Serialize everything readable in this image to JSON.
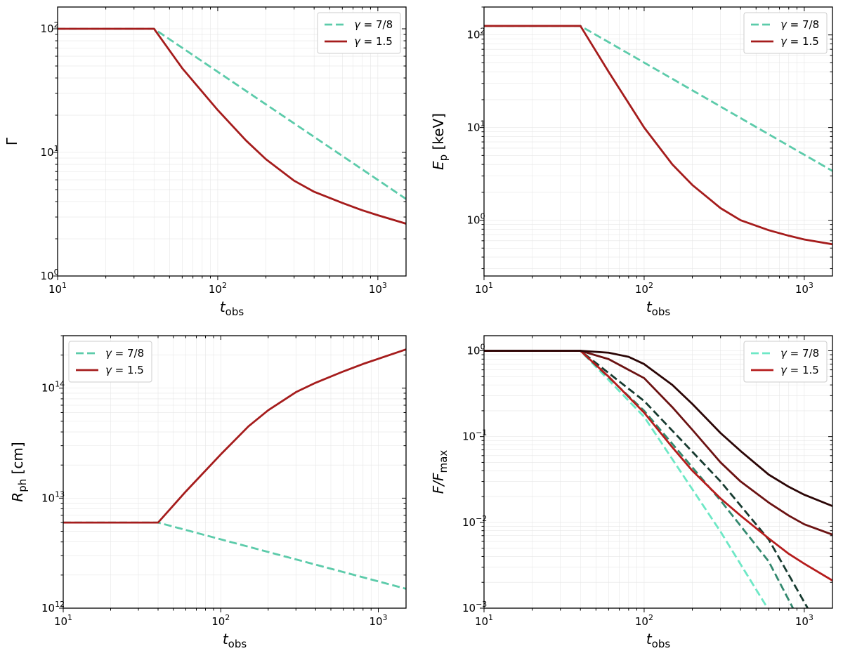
{
  "chart_data": [
    {
      "type": "line",
      "panel": "top-left",
      "xscale": "log",
      "yscale": "log",
      "xlim": [
        10,
        1500
      ],
      "ylim": [
        1,
        150
      ],
      "xlabel": "t",
      "xlabel_sub": "obs",
      "ylabel": "Γ",
      "ylabel_sub": "",
      "legend_position": "top-right",
      "xticks": [
        {
          "value": 10,
          "base": "10",
          "exp": "1"
        },
        {
          "value": 100,
          "base": "10",
          "exp": "2"
        },
        {
          "value": 1000,
          "base": "10",
          "exp": "3"
        }
      ],
      "yticks": [
        {
          "value": 1,
          "base": "10",
          "exp": "0"
        },
        {
          "value": 10,
          "base": "10",
          "exp": "1"
        },
        {
          "value": 100,
          "base": "10",
          "exp": "2"
        }
      ],
      "series": [
        {
          "name": "γ = 7/8",
          "label_prefix": "γ = ",
          "label_value": "7/8",
          "legend": true,
          "color": "#5ccbaa",
          "dash": true,
          "x": [
            10,
            40,
            1500
          ],
          "y": [
            100,
            100,
            4.2
          ]
        },
        {
          "name": "γ = 1.5",
          "label_prefix": "γ = ",
          "label_value": "1.5",
          "legend": true,
          "color": "#a51c1c",
          "dash": false,
          "x": [
            10,
            40,
            60,
            100,
            150,
            200,
            300,
            400,
            600,
            800,
            1000,
            1500
          ],
          "y": [
            100,
            100,
            48,
            22,
            12.5,
            8.8,
            5.9,
            4.8,
            3.9,
            3.4,
            3.1,
            2.65
          ]
        }
      ]
    },
    {
      "type": "line",
      "panel": "top-right",
      "xscale": "log",
      "yscale": "log",
      "xlim": [
        10,
        1500
      ],
      "ylim": [
        0.25,
        200
      ],
      "xlabel": "t",
      "xlabel_sub": "obs",
      "ylabel": "E",
      "ylabel_sub": "p",
      "ylabel_suffix": " [keV]",
      "legend_position": "top-right",
      "xticks": [
        {
          "value": 10,
          "base": "10",
          "exp": "1"
        },
        {
          "value": 100,
          "base": "10",
          "exp": "2"
        },
        {
          "value": 1000,
          "base": "10",
          "exp": "3"
        }
      ],
      "yticks": [
        {
          "value": 1,
          "base": "10",
          "exp": "0"
        },
        {
          "value": 10,
          "base": "10",
          "exp": "1"
        },
        {
          "value": 100,
          "base": "10",
          "exp": "2"
        }
      ],
      "series": [
        {
          "name": "γ = 7/8",
          "label_prefix": "γ = ",
          "label_value": "7/8",
          "legend": true,
          "color": "#5ccbaa",
          "dash": true,
          "x": [
            10,
            40,
            1500
          ],
          "y": [
            125,
            125,
            3.4
          ]
        },
        {
          "name": "γ = 1.5",
          "label_prefix": "γ = ",
          "label_value": "1.5",
          "legend": true,
          "color": "#a51c1c",
          "dash": false,
          "x": [
            10,
            40,
            60,
            100,
            150,
            200,
            300,
            400,
            600,
            800,
            1000,
            1500
          ],
          "y": [
            125,
            125,
            40,
            10,
            4.0,
            2.4,
            1.35,
            1.0,
            0.78,
            0.68,
            0.62,
            0.55
          ]
        }
      ]
    },
    {
      "type": "line",
      "panel": "bottom-left",
      "xscale": "log",
      "yscale": "log",
      "xlim": [
        10,
        1500
      ],
      "ylim": [
        1000000000000.0,
        300000000000000.0
      ],
      "xlabel": "t",
      "xlabel_sub": "obs",
      "ylabel": "R",
      "ylabel_sub": "ph",
      "ylabel_suffix": " [cm]",
      "legend_position": "top-left",
      "xticks": [
        {
          "value": 10,
          "base": "10",
          "exp": "1"
        },
        {
          "value": 100,
          "base": "10",
          "exp": "2"
        },
        {
          "value": 1000,
          "base": "10",
          "exp": "3"
        }
      ],
      "yticks": [
        {
          "value": 1000000000000.0,
          "base": "10",
          "exp": "12"
        },
        {
          "value": 10000000000000.0,
          "base": "10",
          "exp": "13"
        },
        {
          "value": 100000000000000.0,
          "base": "10",
          "exp": "14"
        }
      ],
      "series": [
        {
          "name": "γ = 7/8",
          "label_prefix": "γ = ",
          "label_value": "7/8",
          "legend": true,
          "color": "#5ccbaa",
          "dash": true,
          "x": [
            10,
            40,
            1500
          ],
          "y": [
            6000000000000.0,
            6000000000000.0,
            1500000000000.0
          ]
        },
        {
          "name": "γ = 1.5",
          "label_prefix": "γ = ",
          "label_value": "1.5",
          "legend": true,
          "color": "#a51c1c",
          "dash": false,
          "x": [
            10,
            40,
            60,
            100,
            150,
            200,
            300,
            400,
            600,
            800,
            1000,
            1500
          ],
          "y": [
            6000000000000.0,
            6000000000000.0,
            11500000000000.0,
            25000000000000.0,
            45000000000000.0,
            63000000000000.0,
            92000000000000.0,
            112000000000000.0,
            142000000000000.0,
            166000000000000.0,
            185000000000000.0,
            225000000000000.0
          ]
        }
      ]
    },
    {
      "type": "line",
      "panel": "bottom-right",
      "xscale": "log",
      "yscale": "log",
      "xlim": [
        10,
        1500
      ],
      "ylim": [
        0.001,
        1.5
      ],
      "xlabel": "t",
      "xlabel_sub": "obs",
      "ylabel": "F/F",
      "ylabel_sub": "max",
      "legend_position": "top-right",
      "xticks": [
        {
          "value": 10,
          "base": "10",
          "exp": "1"
        },
        {
          "value": 100,
          "base": "10",
          "exp": "2"
        },
        {
          "value": 1000,
          "base": "10",
          "exp": "3"
        }
      ],
      "yticks": [
        {
          "value": 0.001,
          "base": "10",
          "exp": "−3"
        },
        {
          "value": 0.01,
          "base": "10",
          "exp": "−2"
        },
        {
          "value": 0.1,
          "base": "10",
          "exp": "−1"
        },
        {
          "value": 1,
          "base": "10",
          "exp": "0"
        }
      ],
      "series": [
        {
          "name": "γ = 7/8",
          "label_prefix": "γ = ",
          "label_value": "7/8",
          "legend": true,
          "color": "#6ee8c6",
          "dash": true,
          "x": [
            10,
            40,
            100,
            300,
            590
          ],
          "y": [
            1,
            1,
            0.17,
            0.0078,
            0.001
          ]
        },
        {
          "name": "γ = 7/8 (mid)",
          "legend": false,
          "color": "#33896f",
          "dash": true,
          "x": [
            10,
            40,
            100,
            300,
            600,
            850
          ],
          "y": [
            1,
            1,
            0.2,
            0.018,
            0.0035,
            0.001
          ]
        },
        {
          "name": "γ = 7/8 (dark)",
          "legend": false,
          "color": "#173b30",
          "dash": true,
          "x": [
            10,
            40,
            100,
            300,
            600,
            1050
          ],
          "y": [
            1,
            1,
            0.26,
            0.03,
            0.0063,
            0.001
          ]
        },
        {
          "name": "γ = 1.5",
          "label_prefix": "γ = ",
          "label_value": "1.5",
          "legend": true,
          "color": "#b51c1c",
          "dash": false,
          "x": [
            10,
            40,
            60,
            100,
            150,
            200,
            300,
            400,
            600,
            800,
            1000,
            1500
          ],
          "y": [
            1,
            1,
            0.5,
            0.19,
            0.075,
            0.04,
            0.019,
            0.012,
            0.0065,
            0.0043,
            0.0033,
            0.0021
          ]
        },
        {
          "name": "γ = 1.5 (mid)",
          "legend": false,
          "color": "#6b1212",
          "dash": false,
          "x": [
            10,
            40,
            60,
            100,
            150,
            200,
            300,
            400,
            600,
            800,
            1000,
            1500
          ],
          "y": [
            1,
            1,
            0.8,
            0.48,
            0.22,
            0.12,
            0.05,
            0.03,
            0.017,
            0.012,
            0.0095,
            0.0072
          ]
        },
        {
          "name": "γ = 1.5 (dark)",
          "legend": false,
          "color": "#2b0606",
          "dash": false,
          "x": [
            10,
            40,
            60,
            80,
            100,
            150,
            200,
            300,
            400,
            600,
            800,
            1000,
            1500
          ],
          "y": [
            1,
            1,
            0.95,
            0.85,
            0.7,
            0.4,
            0.24,
            0.11,
            0.068,
            0.036,
            0.026,
            0.021,
            0.0155
          ]
        }
      ]
    }
  ]
}
